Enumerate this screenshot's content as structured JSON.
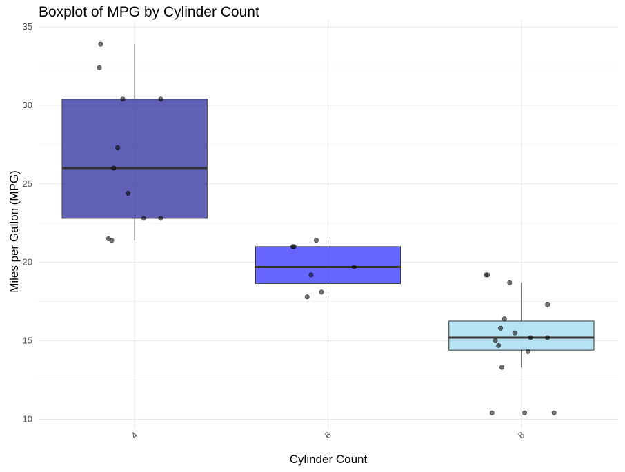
{
  "chart_data": {
    "type": "boxplot",
    "title": "Boxplot of MPG by Cylinder Count",
    "xlabel": "Cylinder Count",
    "ylabel": "Miles per Gallon (MPG)",
    "categories": [
      "4",
      "6",
      "8"
    ],
    "ylim": [
      9.4,
      35.4
    ],
    "yticks": [
      10,
      15,
      20,
      25,
      30,
      35
    ],
    "grid": true,
    "boxes": [
      {
        "category": "4",
        "min": 21.4,
        "q1": 22.8,
        "median": 26.0,
        "q3": 30.4,
        "max": 33.9,
        "color": "#2b2b9e"
      },
      {
        "category": "6",
        "min": 17.8,
        "q1": 18.65,
        "median": 19.7,
        "q3": 21.0,
        "max": 21.4,
        "color": "#3333ff"
      },
      {
        "category": "8",
        "min": 13.3,
        "q1": 14.4,
        "median": 15.2,
        "q3": 16.25,
        "max": 18.7,
        "color": "#9fd8ec"
      }
    ],
    "points": [
      {
        "category": "4",
        "values": [
          33.9,
          32.4,
          30.4,
          30.4,
          27.3,
          26.0,
          24.4,
          22.8,
          22.8,
          21.5,
          21.4
        ]
      },
      {
        "category": "6",
        "values": [
          21.0,
          21.0,
          21.4,
          19.7,
          19.2,
          17.8,
          18.1
        ]
      },
      {
        "category": "8",
        "values": [
          19.2,
          19.2,
          18.7,
          17.3,
          16.4,
          15.8,
          15.5,
          15.2,
          15.2,
          15.0,
          14.7,
          14.3,
          13.3,
          10.4,
          10.4,
          10.4
        ]
      }
    ]
  }
}
